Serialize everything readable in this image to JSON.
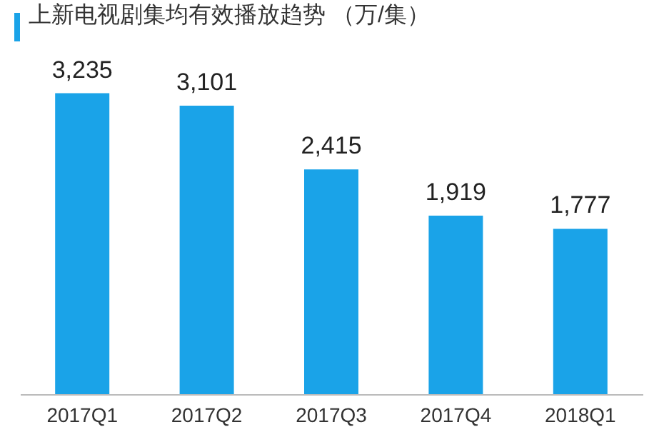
{
  "chart_data": {
    "type": "bar",
    "title": "上新电视剧集均有效播放趋势 （万/集）",
    "categories": [
      "2017Q1",
      "2017Q2",
      "2017Q3",
      "2017Q4",
      "2018Q1"
    ],
    "values": [
      3235,
      3101,
      2415,
      1919,
      1777
    ],
    "value_labels": [
      "3,235",
      "3,101",
      "2,415",
      "1,919",
      "1,777"
    ],
    "color": "#1aa3e8"
  }
}
